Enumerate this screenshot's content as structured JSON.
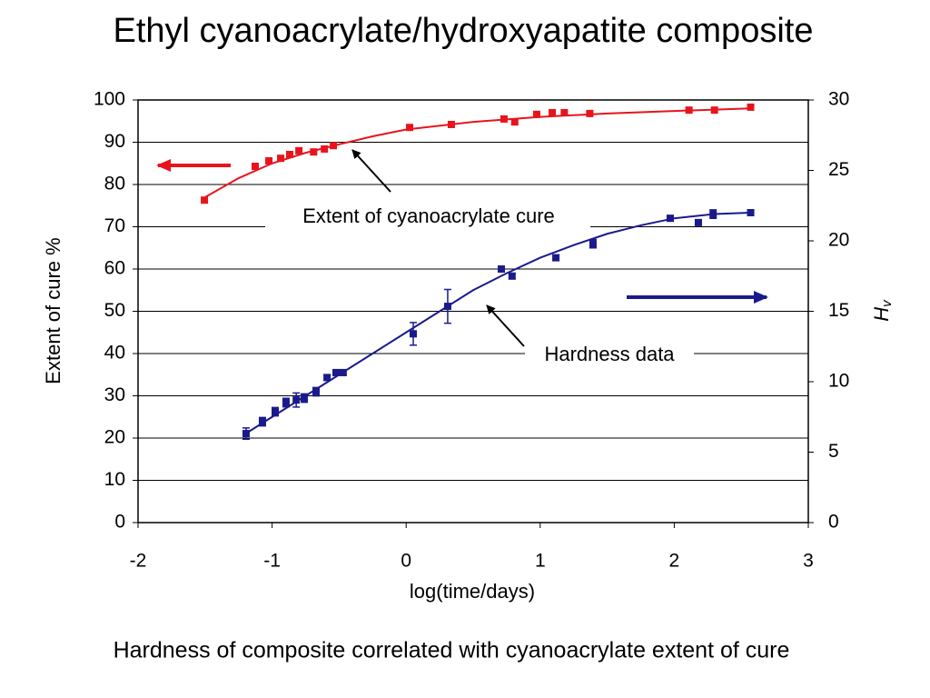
{
  "chart_data": {
    "type": "scatter",
    "title": "Ethyl cyanoacrylate/hydroxyapatite composite",
    "x_label": "log(time/days)",
    "y_label": "Extent of cure %",
    "y2_label": {
      "main": "H",
      "sub": "v"
    },
    "xlim": [
      -2,
      3
    ],
    "xticks": [
      -2,
      -1,
      0,
      1,
      2,
      3
    ],
    "ylim": [
      0,
      100
    ],
    "yticks": [
      0,
      10,
      20,
      30,
      40,
      50,
      60,
      70,
      80,
      90,
      100
    ],
    "y2lim": [
      0,
      30
    ],
    "y2ticks": [
      0,
      5,
      10,
      15,
      20,
      25,
      30
    ],
    "grid": true,
    "series": [
      {
        "color": "#e8141c",
        "axis": "y",
        "x": [
          -1.505,
          -1.126,
          -1.024,
          -0.936,
          -0.869,
          -0.8,
          -0.69,
          -0.61,
          -0.543,
          0.026,
          0.337,
          0.73,
          0.81,
          0.974,
          1.09,
          1.18,
          1.37,
          2.11,
          2.3,
          2.57
        ],
        "values": [
          76.3,
          84.3,
          85.6,
          86.2,
          87.1,
          88.0,
          87.7,
          88.4,
          89.2,
          93.5,
          94.2,
          95.5,
          94.8,
          96.6,
          97.0,
          97.0,
          96.8,
          97.6,
          97.6,
          98.3
        ]
      },
      {
        "color": "#1a1a8c",
        "axis": "y2",
        "x": [
          -1.194,
          -1.072,
          -0.977,
          -0.896,
          -0.82,
          -0.76,
          -0.672,
          -0.59,
          -0.523,
          -0.47,
          0.053,
          0.31,
          0.71,
          0.79,
          1.117,
          1.394,
          1.97,
          2.18,
          2.29,
          2.57
        ],
        "values": [
          6.32,
          7.16,
          7.87,
          8.52,
          8.7,
          8.84,
          9.29,
          10.3,
          10.65,
          10.65,
          13.4,
          15.35,
          18.0,
          17.5,
          18.8,
          19.8,
          21.6,
          21.3,
          21.9,
          22.0
        ],
        "errors": [
          0.4,
          0.3,
          0.3,
          0.3,
          0.5,
          0.3,
          0.3,
          0.2,
          0.2,
          0.2,
          0.8,
          1.2,
          0.2,
          0.2,
          0.2,
          0.3,
          0.2,
          0.2,
          0.3,
          0.2
        ]
      }
    ],
    "fits": [
      {
        "color": "#e8141c",
        "axis": "y",
        "x": [
          -1.5,
          -1.25,
          -1,
          -0.75,
          -0.5,
          -0.25,
          0,
          0.5,
          1,
          1.5,
          2,
          2.57
        ],
        "values": [
          77,
          81.5,
          85,
          87.5,
          89.5,
          91.4,
          93,
          94.8,
          96,
          96.8,
          97.4,
          98
        ]
      },
      {
        "color": "#1a1a8c",
        "axis": "y2",
        "x": [
          -1.2,
          -1,
          -0.75,
          -0.5,
          -0.25,
          0,
          0.25,
          0.5,
          0.75,
          1,
          1.25,
          1.5,
          1.75,
          2,
          2.3,
          2.57
        ],
        "values": [
          6.3,
          7.5,
          9.0,
          10.5,
          12.0,
          13.5,
          15.0,
          16.5,
          17.7,
          18.8,
          19.7,
          20.5,
          21.1,
          21.6,
          21.9,
          22.0
        ]
      }
    ],
    "annotations": [
      "Extent of cyanoacrylate cure",
      "Hardness data"
    ]
  },
  "caption": "Hardness of composite correlated with cyanoacrylate extent of cure"
}
